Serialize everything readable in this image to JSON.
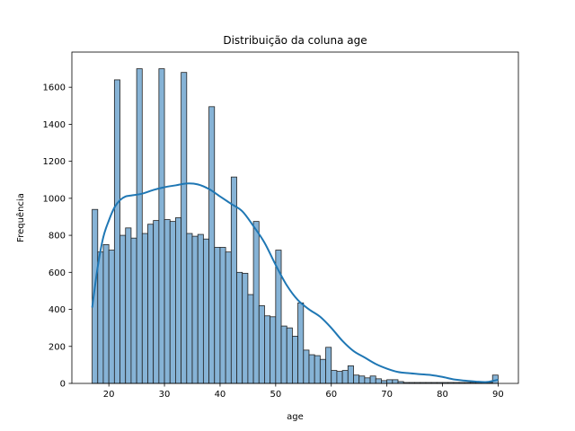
{
  "chart_data": {
    "type": "histogram",
    "title": "Distribuição da coluna age",
    "xlabel": "age",
    "ylabel": "Frequência",
    "xlim": [
      13.35,
      93.65
    ],
    "ylim": [
      0,
      1790
    ],
    "xticks": [
      20,
      30,
      40,
      50,
      60,
      70,
      80,
      90
    ],
    "yticks": [
      0,
      200,
      400,
      600,
      800,
      1000,
      1200,
      1400,
      1600
    ],
    "grid": false,
    "legend": "none",
    "bin_range": [
      17,
      90
    ],
    "bin_width": 1,
    "counts": [
      940,
      710,
      750,
      720,
      1640,
      800,
      840,
      785,
      1700,
      810,
      860,
      880,
      1700,
      885,
      875,
      895,
      1680,
      810,
      795,
      805,
      780,
      1495,
      735,
      735,
      710,
      1115,
      600,
      595,
      480,
      875,
      420,
      365,
      360,
      720,
      310,
      300,
      255,
      435,
      180,
      155,
      150,
      130,
      195,
      70,
      65,
      70,
      95,
      45,
      40,
      30,
      40,
      25,
      15,
      20,
      20,
      10,
      5,
      5,
      5,
      5,
      5,
      5,
      5,
      5,
      5,
      5,
      5,
      5,
      5,
      5,
      5,
      5,
      45
    ],
    "kde_x": [
      17,
      18,
      19,
      20,
      21,
      22,
      23,
      24,
      26,
      28,
      30,
      32,
      34,
      36,
      38,
      40,
      42,
      44,
      46,
      48,
      50,
      52,
      54,
      56,
      58,
      60,
      62,
      64,
      66,
      68,
      70,
      72,
      74,
      76,
      78,
      80,
      82,
      84,
      86,
      88,
      90
    ],
    "kde_y": [
      410,
      630,
      790,
      880,
      950,
      990,
      1010,
      1015,
      1025,
      1045,
      1060,
      1070,
      1080,
      1075,
      1050,
      1010,
      970,
      930,
      850,
      760,
      640,
      530,
      450,
      400,
      360,
      300,
      230,
      175,
      140,
      105,
      80,
      62,
      55,
      50,
      45,
      35,
      22,
      15,
      10,
      8,
      20
    ],
    "bar_color": "#86b3d6",
    "bar_edge_color": "#222222",
    "kde_color": "#1f77b4"
  }
}
